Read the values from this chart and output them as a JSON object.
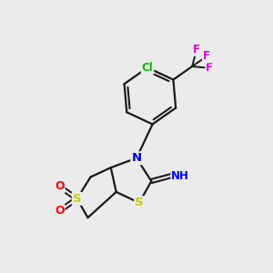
{
  "bg_color": "#ebebeb",
  "bond_color": "#1a1a1a",
  "atom_colors": {
    "S": "#cccc00",
    "N": "#0000ff",
    "O": "#ff0000",
    "Cl": "#00bb00",
    "F": "#dd00dd",
    "H": "#008888",
    "C": "#1a1a1a"
  },
  "figsize": [
    3.0,
    3.0
  ],
  "dpi": 100
}
